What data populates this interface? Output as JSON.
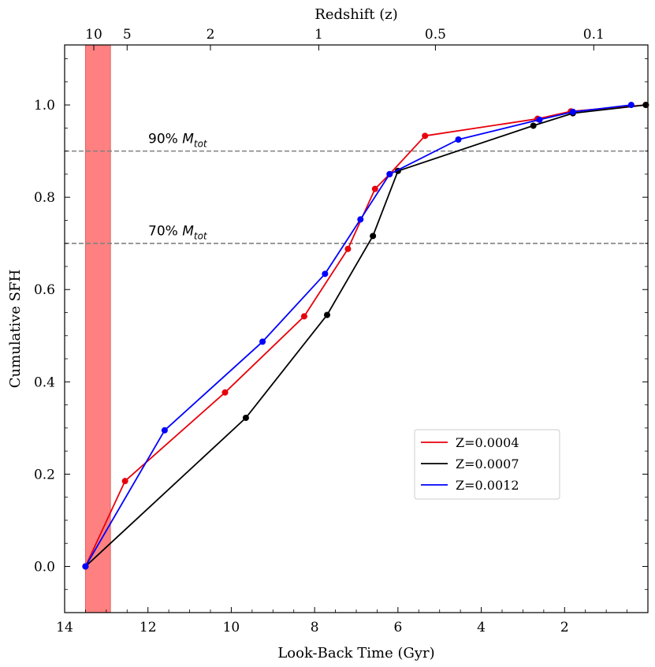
{
  "chart_data": {
    "type": "line",
    "xlabel": "Look-Back Time (Gyr)",
    "ylabel": "Cumulative SFH",
    "top_axis_label": "Redshift (z)",
    "xlim": [
      14,
      0
    ],
    "ylim": [
      -0.1,
      1.13
    ],
    "grid": false,
    "x_ticks": [
      14,
      12,
      10,
      8,
      6,
      4,
      2
    ],
    "x_tick_labels": [
      "14",
      "12",
      "10",
      "8",
      "6",
      "4",
      "2"
    ],
    "y_ticks": [
      0.0,
      0.2,
      0.4,
      0.6,
      0.8,
      1.0
    ],
    "y_tick_labels": [
      "0.0",
      "0.2",
      "0.4",
      "0.6",
      "0.8",
      "1.0"
    ],
    "top_ticks": [
      {
        "label": "10",
        "lookback": 13.3
      },
      {
        "label": "5",
        "lookback": 12.5
      },
      {
        "label": "2",
        "lookback": 10.5
      },
      {
        "label": "1",
        "lookback": 7.9
      },
      {
        "label": "0.5",
        "lookback": 5.1
      },
      {
        "label": "0.1",
        "lookback": 1.3
      }
    ],
    "shaded_band": {
      "x_start": 13.5,
      "x_end": 12.9,
      "color": "#ff8080"
    },
    "reference_lines": [
      {
        "y": 0.9,
        "label_prefix": "90% ",
        "label_main": "M",
        "label_sub": "tot"
      },
      {
        "y": 0.7,
        "label_prefix": "70% ",
        "label_main": "M",
        "label_sub": "tot"
      }
    ],
    "legend_position": "lower-right",
    "series": [
      {
        "name": "Z=0.0004",
        "color": "#e8000b",
        "x": [
          13.5,
          12.55,
          10.15,
          8.25,
          7.2,
          6.55,
          6.2,
          5.35,
          2.65,
          1.85,
          0.05
        ],
        "y": [
          0.0,
          0.185,
          0.377,
          0.542,
          0.688,
          0.818,
          0.85,
          0.933,
          0.97,
          0.986,
          1.0
        ]
      },
      {
        "name": "Z=0.0007",
        "color": "#000000",
        "x": [
          13.5,
          9.65,
          7.7,
          6.6,
          6.0,
          2.75,
          1.8,
          0.05
        ],
        "y": [
          0.0,
          0.322,
          0.545,
          0.716,
          0.857,
          0.955,
          0.982,
          1.0
        ]
      },
      {
        "name": "Z=0.0012",
        "color": "#0000ff",
        "x": [
          13.5,
          11.6,
          9.25,
          7.75,
          6.9,
          6.2,
          4.55,
          2.6,
          1.8,
          0.4
        ],
        "y": [
          0.0,
          0.295,
          0.487,
          0.634,
          0.752,
          0.85,
          0.925,
          0.968,
          0.985,
          1.0
        ]
      }
    ]
  }
}
